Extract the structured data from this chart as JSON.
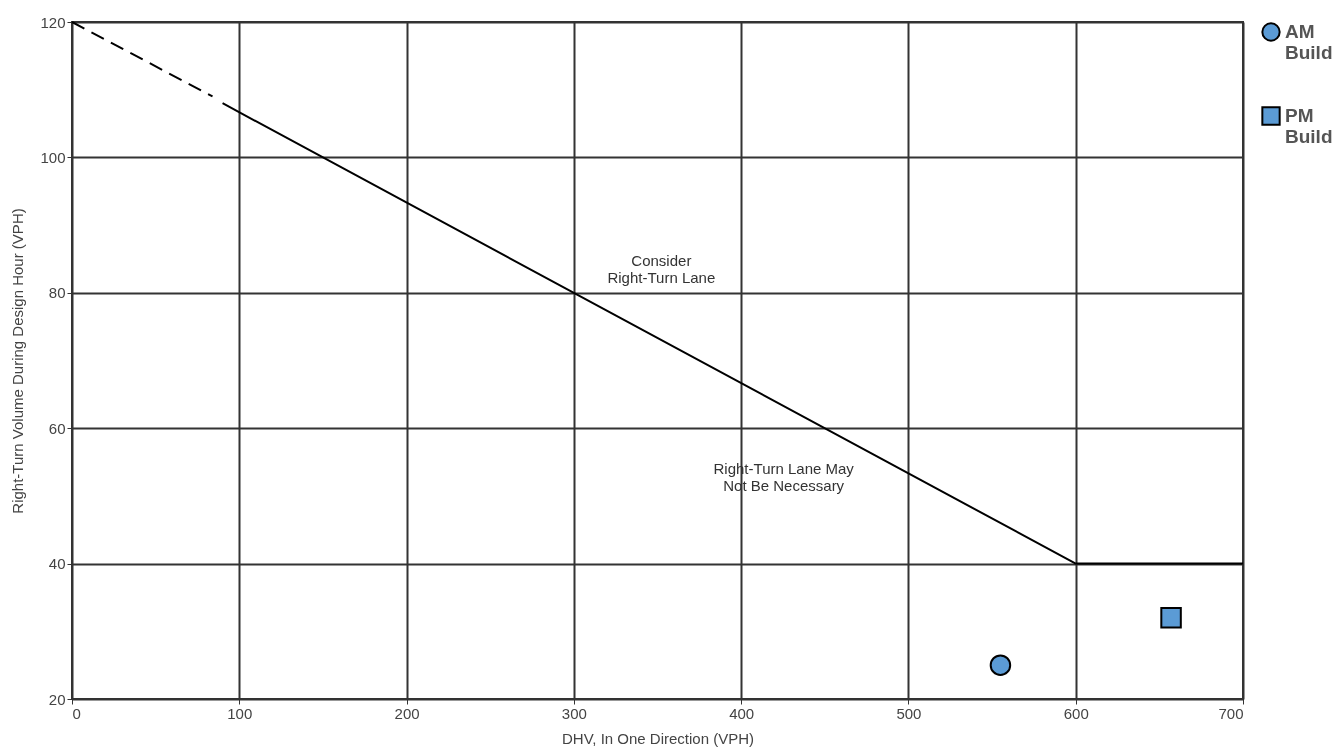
{
  "chart_data": {
    "type": "scatter",
    "xlabel": "DHV, In One Direction (VPH)",
    "ylabel": "Right-Turn Volume During Design Hour (VPH)",
    "xlim": [
      0,
      700
    ],
    "xticks": [
      0,
      100,
      200,
      300,
      400,
      500,
      600,
      700
    ],
    "ylim": [
      20,
      120
    ],
    "yticks": [
      20,
      40,
      60,
      80,
      100,
      120
    ],
    "grid": true,
    "legend": "right",
    "series": [
      {
        "type": "line",
        "x": [
          0,
          84
        ],
        "values": [
          120,
          109
        ],
        "color": "#000000",
        "line_style": "dashed",
        "marker": "none"
      },
      {
        "type": "line",
        "x": [
          90,
          600,
          700
        ],
        "values": [
          108,
          40,
          40
        ],
        "color": "#000000",
        "line_style": "solid",
        "marker": "none"
      },
      {
        "name": "AM Build",
        "type": "scatter",
        "x": [
          555
        ],
        "values": [
          25
        ],
        "color": "#5b9bd5",
        "marker": "circle"
      },
      {
        "name": "PM Build",
        "type": "scatter",
        "x": [
          657
        ],
        "values": [
          32
        ],
        "color": "#5b9bd5",
        "marker": "square"
      }
    ],
    "annotations": [
      "Consider\nRight-Turn Lane",
      "Right-Turn Lane May\nNot Be Necessary"
    ]
  }
}
